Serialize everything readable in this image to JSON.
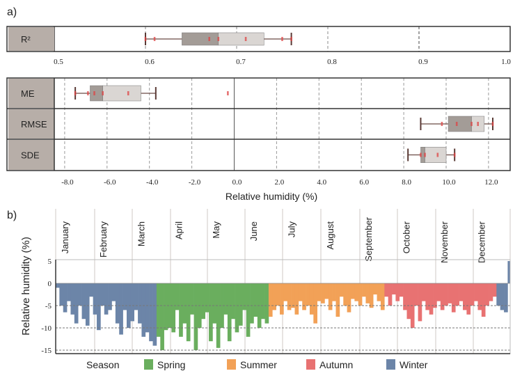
{
  "panel_a_label": "a)",
  "panel_b_label": "b)",
  "chart_data": [
    {
      "type": "boxplot",
      "rows": [
        {
          "name": "R²",
          "whisker_low": 0.6,
          "q1": 0.64,
          "median": 0.68,
          "q3": 0.73,
          "whisker_high": 0.76,
          "points": [
            0.6,
            0.61,
            0.67,
            0.68,
            0.71,
            0.75,
            0.76
          ]
        }
      ],
      "xlim": [
        0.5,
        1.0
      ],
      "ticks": [
        "0.5",
        "0.6",
        "0.7",
        "0.8",
        "0.9",
        "1.0"
      ],
      "grid": true
    },
    {
      "type": "boxplot",
      "xlabel": "Relative humidity (%)",
      "rows": [
        {
          "name": "ME",
          "whisker_low": -7.5,
          "q1": -6.8,
          "median": -6.2,
          "q3": -4.4,
          "whisker_high": -3.7,
          "points": [
            -7.5,
            -6.9,
            -6.6,
            -6.2,
            -5.0,
            -0.3
          ]
        },
        {
          "name": "RMSE",
          "whisker_low": 8.8,
          "q1": 10.1,
          "median": 11.2,
          "q3": 11.8,
          "whisker_high": 12.2,
          "points": [
            9.8,
            10.5,
            11.2,
            11.5,
            12.2
          ]
        },
        {
          "name": "SDE",
          "whisker_low": 8.2,
          "q1": 8.8,
          "median": 9.0,
          "q3": 10.0,
          "whisker_high": 10.4,
          "points": [
            8.8,
            9.0,
            9.6,
            10.4
          ]
        }
      ],
      "xlim": [
        -8.5,
        13.0
      ],
      "ticks": [
        "-8.0",
        "-6.0",
        "-4.0",
        "-2.0",
        "0.0",
        "2.0",
        "4.0",
        "6.0",
        "8.0",
        "10.0",
        "12.0"
      ],
      "grid": true
    },
    {
      "type": "area",
      "ylabel": "Relative humidity (%)",
      "ylim": [
        -15.8,
        5.5
      ],
      "yticks": [
        "5",
        "0",
        "-5",
        "-10",
        "-15"
      ],
      "months": [
        "January",
        "February",
        "March",
        "April",
        "May",
        "June",
        "July",
        "August",
        "September",
        "October",
        "November",
        "December"
      ],
      "day_step": 3,
      "values": [
        -1,
        -5,
        -6.5,
        -4,
        -7,
        -9,
        -5,
        -8,
        -9.5,
        -3,
        -7,
        -10.5,
        -5,
        -7,
        -6,
        -4,
        -9,
        -11.5,
        -6,
        -10,
        -8.5,
        -6,
        -9,
        -12,
        -11,
        -13,
        -14,
        -12,
        -15,
        -10.5,
        -10,
        -11,
        -6,
        -12,
        -9,
        -13,
        -7,
        -15,
        -10,
        -8,
        -6.5,
        -13,
        -9,
        -14.5,
        -10,
        -7,
        -13,
        -8,
        -11,
        -9.5,
        -6,
        -12,
        -9,
        -7.5,
        -10,
        -8,
        -9,
        -7.5,
        -6,
        -5,
        -7,
        -4,
        -6,
        -5.5,
        -7,
        -4,
        -6,
        -5,
        -7,
        -9,
        -4,
        -4.5,
        -3.5,
        -6,
        -4,
        -7.5,
        -3,
        -5,
        -6.5,
        -3.5,
        -4,
        -5,
        -3,
        -4.5,
        -5.5,
        -2.5,
        -4,
        -6,
        -3,
        -5,
        -2.5,
        -4,
        -3,
        -6,
        -8,
        -10,
        -5,
        -8.5,
        -4,
        -6,
        -7,
        -5.5,
        -4,
        -6,
        -5,
        -4.5,
        -6.5,
        -5,
        -4,
        -6,
        -7,
        -5,
        -4,
        -6,
        -7.5,
        -5,
        -4,
        -3,
        -5,
        -6,
        -6.5,
        5
      ],
      "seasons": [
        {
          "name": "Winter",
          "from_day": 1,
          "to_day": 79
        },
        {
          "name": "Spring",
          "from_day": 80,
          "to_day": 171
        },
        {
          "name": "Summer",
          "from_day": 172,
          "to_day": 264
        },
        {
          "name": "Autumn",
          "from_day": 265,
          "to_day": 354
        },
        {
          "name": "Winter",
          "from_day": 355,
          "to_day": 365
        }
      ],
      "legend": {
        "title": "Season",
        "items": [
          {
            "name": "Spring",
            "color": "#6aae5e"
          },
          {
            "name": "Summer",
            "color": "#f2a157"
          },
          {
            "name": "Autumn",
            "color": "#e87272"
          },
          {
            "name": "Winter",
            "color": "#6c85a8"
          }
        ],
        "placement": "bottom"
      }
    }
  ]
}
